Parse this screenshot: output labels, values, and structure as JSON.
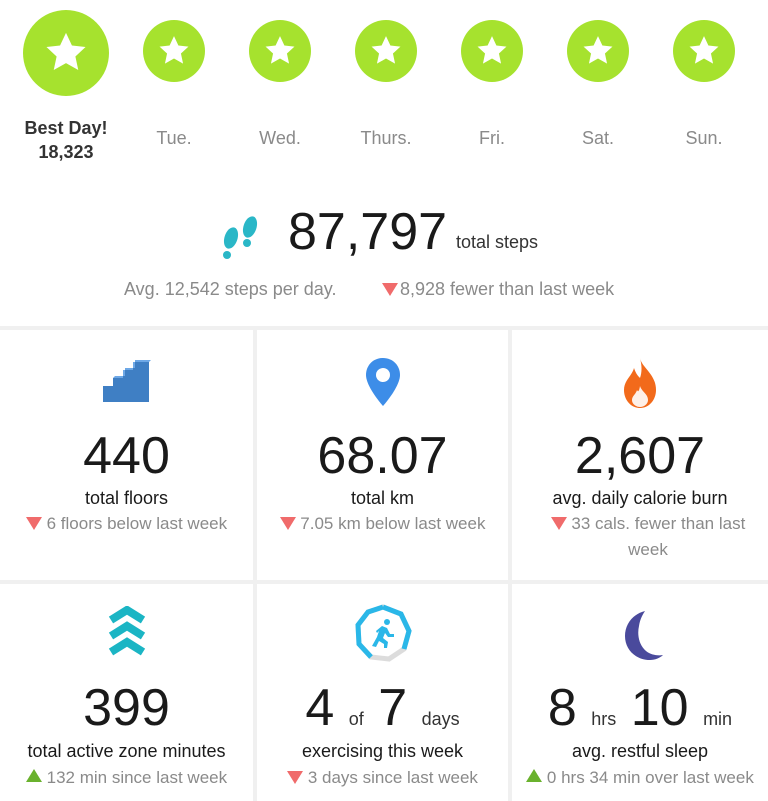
{
  "week": {
    "best": {
      "label": "Best Day!",
      "value": "18,323"
    },
    "days": [
      "Tue.",
      "Wed.",
      "Thurs.",
      "Fri.",
      "Sat.",
      "Sun."
    ]
  },
  "steps": {
    "total": "87,797",
    "unit": "total steps",
    "avg": "Avg. 12,542 steps per day.",
    "change": "8,928 fewer than last week"
  },
  "stats": [
    {
      "value": "440",
      "label": "total floors",
      "change": "6 floors below last week",
      "trend": "down",
      "icon": "stairs-icon"
    },
    {
      "value": "68.07",
      "label": "total km",
      "change": "7.05 km below last week",
      "trend": "down",
      "icon": "location-pin-icon"
    },
    {
      "value": "2,607",
      "label": "avg. daily calorie burn",
      "change": "33 cals. fewer than last week",
      "trend": "down",
      "icon": "flame-icon"
    },
    {
      "value": "399",
      "label": "total active zone minutes",
      "change": "132 min since last week",
      "trend": "up",
      "icon": "chevrons-up-icon"
    },
    {
      "value_a": "4",
      "of": "of",
      "value_b": "7",
      "unit": "days",
      "label": "exercising this week",
      "change": "3 days since last week",
      "trend": "down",
      "icon": "exercise-runner-icon"
    },
    {
      "hours": "8",
      "hrs": "hrs",
      "minutes": "10",
      "min": "min",
      "label": "avg. restful sleep",
      "change": "0 hrs 34 min over last week",
      "trend": "up",
      "icon": "moon-icon"
    }
  ],
  "colors": {
    "star_green": "#a6e22e",
    "steps_teal": "#2ab7c7",
    "down_red": "#f06b6b",
    "up_green": "#6ab22e",
    "stairs_blue": "#3f7fc4",
    "pin_blue": "#3d8de8",
    "flame_orange": "#f26a1b",
    "azm_teal": "#1bb5c4",
    "moon_purple": "#4a4a9c"
  }
}
